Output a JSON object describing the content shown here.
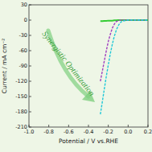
{
  "chart_data": {
    "type": "line",
    "x_label": "Potential / V vs.RHE",
    "y_label": "Current / mA cm⁻²",
    "annotation": "Synergistic Optimization",
    "x": [
      -0.28,
      -0.26,
      -0.24,
      -0.22,
      -0.2,
      -0.18,
      -0.16,
      -0.14,
      -0.12,
      -0.1,
      -0.08,
      -0.06,
      0,
      0.2
    ],
    "series": [
      {
        "color": "#33cc33",
        "line_style": "solid",
        "values": [
          -2,
          -2,
          -1.5,
          -1.5,
          -1,
          -1,
          -1,
          -0.5,
          -0.5,
          0,
          0,
          0,
          0,
          0
        ]
      },
      {
        "color": "#a040c0",
        "line_style": "dashed",
        "values": [
          -120,
          -100,
          -80,
          -60,
          -42,
          -28,
          -16,
          -8,
          -3,
          -1,
          0,
          0,
          0,
          0
        ]
      },
      {
        "color": "#20c8d8",
        "line_style": "dashed",
        "values": [
          -185,
          -160,
          -135,
          -110,
          -88,
          -66,
          -48,
          -32,
          -20,
          -11,
          -5,
          -2,
          0,
          0
        ]
      }
    ],
    "xlim": [
      -1,
      0.2
    ],
    "xticks": [
      {
        "value": -1,
        "label": "-1.0"
      },
      -0.8,
      -0.6,
      -0.4,
      -0.2,
      {
        "value": 0,
        "label": "0.0"
      },
      0.2
    ],
    "ylim": [
      -210,
      30
    ],
    "yticks": [
      30,
      0,
      -30,
      -60,
      -90,
      -120,
      -150,
      -180,
      -210
    ],
    "grid": false
  }
}
